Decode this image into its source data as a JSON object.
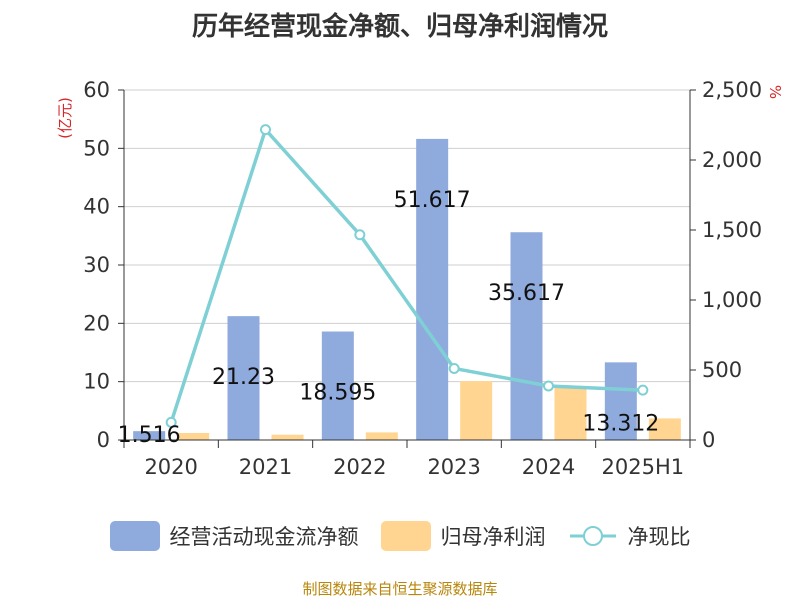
{
  "chart_data": {
    "type": "bar",
    "title": "历年经营现金净额、归母净利润情况",
    "categories": [
      "2020",
      "2021",
      "2022",
      "2023",
      "2024",
      "2025H1"
    ],
    "series": [
      {
        "name": "经营活动现金流净额",
        "type": "bar",
        "axis": "left",
        "color": "#8faadc",
        "values": [
          1.516,
          21.23,
          18.595,
          51.617,
          35.617,
          13.312
        ],
        "labels": [
          "1.516",
          "21.23",
          "18.595",
          "51.617",
          "35.617",
          "13.312"
        ]
      },
      {
        "name": "归母净利润",
        "type": "bar",
        "axis": "left",
        "color": "#ffd591",
        "values": [
          1.2,
          0.9,
          1.3,
          10.1,
          9.2,
          3.7
        ]
      },
      {
        "name": "净现比",
        "type": "line",
        "axis": "right",
        "color": "#7fd0d4",
        "values": [
          126,
          2217,
          1466,
          511,
          386,
          356
        ]
      }
    ],
    "y_left": {
      "label": "(亿元)",
      "ylim": [
        0,
        60
      ],
      "ticks": [
        "0",
        "10",
        "20",
        "30",
        "40",
        "50",
        "60"
      ]
    },
    "y_right": {
      "label": "%",
      "ylim": [
        0,
        2500
      ],
      "ticks": [
        "0",
        "500",
        "1,000",
        "1,500",
        "2,000",
        "2,500"
      ]
    },
    "grid": true,
    "legend_position": "bottom"
  },
  "source": "制图数据来自恒生聚源数据库"
}
